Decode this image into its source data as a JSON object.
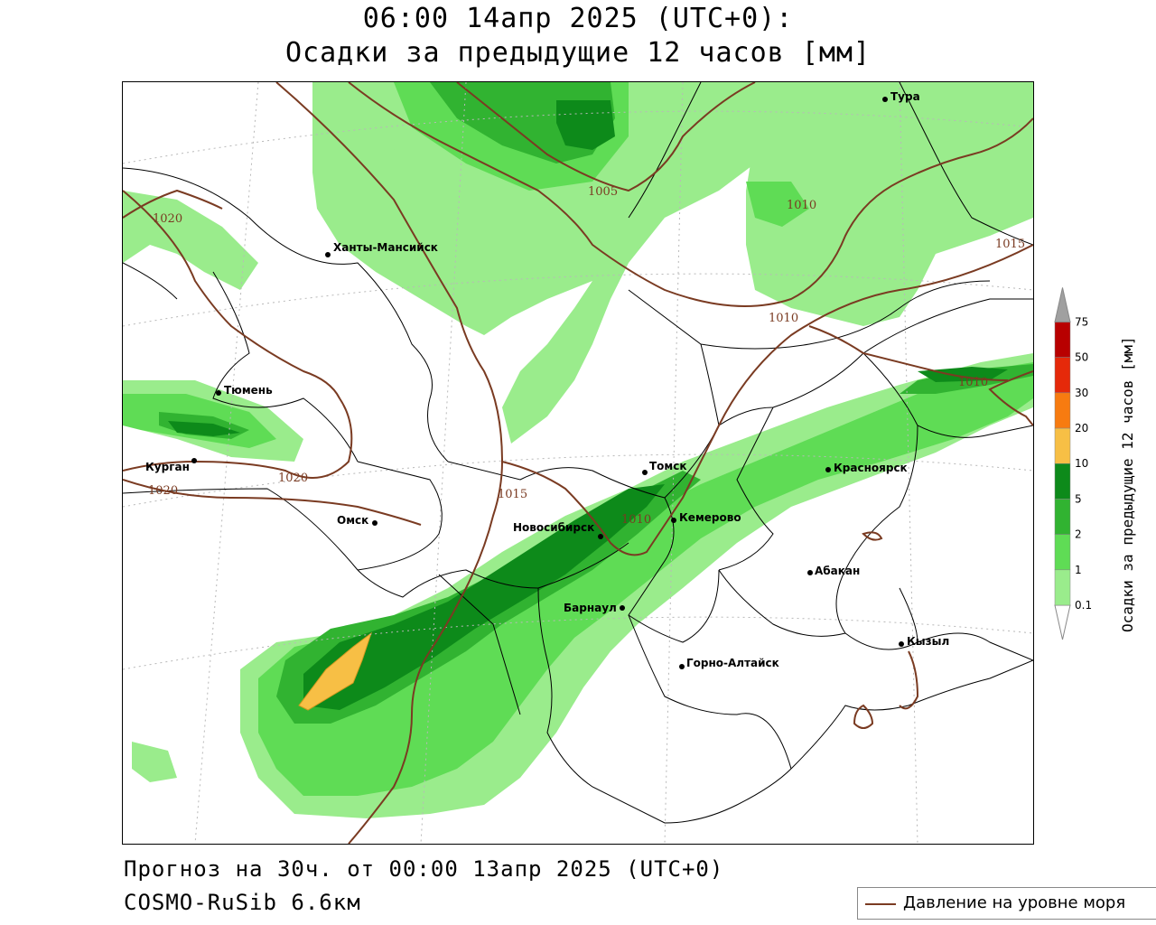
{
  "header": {
    "line1": "06:00 14апр 2025 (UTC+0):",
    "line2": "Осадки за предыдущие 12 часов [мм]"
  },
  "footer": {
    "forecast": "Прогноз на 30ч. от 00:00 13апр 2025 (UTC+0)",
    "model": "COSMO-RuSib 6.6км"
  },
  "legend": {
    "pressure_label": "Давление на уровне моря",
    "pressure_color": "#7a3b22"
  },
  "colorbar": {
    "title": "Осадки за предыдущие 12 часов [мм]",
    "ticks": [
      "0.1",
      "1",
      "2",
      "5",
      "10",
      "20",
      "30",
      "50",
      "75"
    ],
    "colors": [
      "#9aec8c",
      "#5fdc55",
      "#31b331",
      "#0d8a1a",
      "#f7bf45",
      "#f77b10",
      "#e5290a",
      "#b80000"
    ],
    "extend_high_color": "#a0a0a0"
  },
  "cities": [
    {
      "name": "Тура"
    },
    {
      "name": "Ханты-Мансийск"
    },
    {
      "name": "Тюмень"
    },
    {
      "name": "Курган"
    },
    {
      "name": "Омск"
    },
    {
      "name": "Томск"
    },
    {
      "name": "Новосибирск"
    },
    {
      "name": "Кемерово"
    },
    {
      "name": "Красноярск"
    },
    {
      "name": "Абакан"
    },
    {
      "name": "Барнаул"
    },
    {
      "name": "Кызыл"
    },
    {
      "name": "Горно-Алтайск"
    }
  ],
  "isobars": [
    {
      "label": "1005"
    },
    {
      "label": "1010"
    },
    {
      "label": "1015"
    },
    {
      "label": "1020"
    }
  ]
}
